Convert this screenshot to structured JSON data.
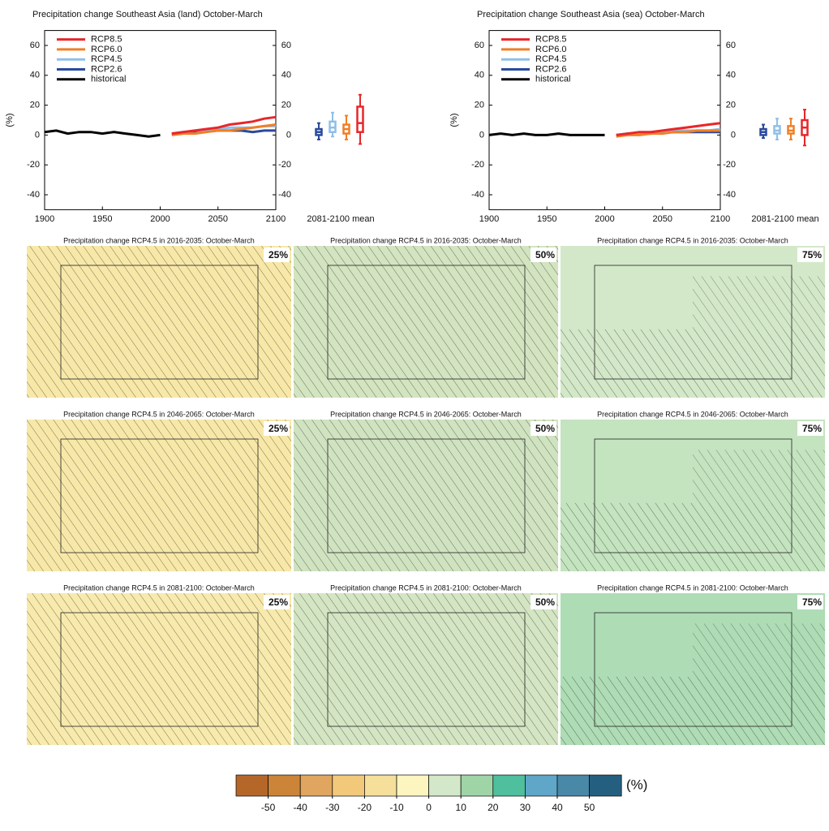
{
  "chart_data": [
    {
      "type": "line",
      "title": "Precipitation change Southeast Asia (land) October-March",
      "y_label": "(%)",
      "x": [
        1900,
        1910,
        1920,
        1930,
        1940,
        1950,
        1960,
        1970,
        1980,
        1990,
        2000,
        2010,
        2020,
        2030,
        2040,
        2050,
        2060,
        2070,
        2080,
        2090,
        2100
      ],
      "series": [
        {
          "name": "RCP8.5",
          "color": "#e8262a",
          "values": [
            null,
            null,
            null,
            null,
            null,
            null,
            null,
            null,
            null,
            null,
            null,
            1,
            2,
            3,
            4,
            5,
            7,
            8,
            9,
            11,
            12
          ]
        },
        {
          "name": "RCP6.0",
          "color": "#f07f27",
          "values": [
            null,
            null,
            null,
            null,
            null,
            null,
            null,
            null,
            null,
            null,
            null,
            0,
            1,
            1,
            2,
            3,
            3,
            4,
            5,
            6,
            7
          ]
        },
        {
          "name": "RCP4.5",
          "color": "#8fbfe8",
          "values": [
            null,
            null,
            null,
            null,
            null,
            null,
            null,
            null,
            null,
            null,
            null,
            1,
            2,
            3,
            3,
            4,
            5,
            5,
            5,
            6,
            6
          ]
        },
        {
          "name": "RCP2.6",
          "color": "#2a4a9c",
          "values": [
            null,
            null,
            null,
            null,
            null,
            null,
            null,
            null,
            null,
            null,
            null,
            1,
            2,
            2,
            3,
            3,
            3,
            3,
            2,
            3,
            3
          ]
        },
        {
          "name": "historical",
          "color": "#000000",
          "values": [
            2,
            3,
            1,
            2,
            2,
            1,
            2,
            1,
            0,
            -1,
            0,
            null,
            null,
            null,
            null,
            null,
            null,
            null,
            null,
            null,
            null
          ]
        }
      ],
      "xlim": [
        1900,
        2100
      ],
      "xticks": [
        1900,
        1950,
        2000,
        2050,
        2100
      ],
      "ylim": [
        -50,
        70
      ],
      "yticks": [
        -40,
        -20,
        0,
        20,
        40,
        60
      ],
      "y2lim": [
        -50,
        70
      ],
      "y2ticks": [
        -40,
        -20,
        0,
        20,
        40,
        60
      ],
      "legend": "upper left",
      "boxplot": {
        "label": "2081-2100 mean",
        "boxes": [
          {
            "color": "#2a4a9c",
            "min": -3,
            "q1": 0,
            "median": 2,
            "q3": 4,
            "max": 8
          },
          {
            "color": "#8fbfe8",
            "min": -1,
            "q1": 2,
            "median": 5,
            "q3": 9,
            "max": 15
          },
          {
            "color": "#f07f27",
            "min": -3,
            "q1": 1,
            "median": 4,
            "q3": 7,
            "max": 13
          },
          {
            "color": "#e8262a",
            "min": -6,
            "q1": 2,
            "median": 8,
            "q3": 19,
            "max": 27
          }
        ]
      }
    },
    {
      "type": "line",
      "title": "Precipitation change Southeast Asia (sea) October-March",
      "y_label": "(%)",
      "x": [
        1900,
        1910,
        1920,
        1930,
        1940,
        1950,
        1960,
        1970,
        1980,
        1990,
        2000,
        2010,
        2020,
        2030,
        2040,
        2050,
        2060,
        2070,
        2080,
        2090,
        2100
      ],
      "series": [
        {
          "name": "RCP8.5",
          "color": "#e8262a",
          "values": [
            null,
            null,
            null,
            null,
            null,
            null,
            null,
            null,
            null,
            null,
            null,
            0,
            1,
            2,
            2,
            3,
            4,
            5,
            6,
            7,
            8
          ]
        },
        {
          "name": "RCP6.0",
          "color": "#f07f27",
          "values": [
            null,
            null,
            null,
            null,
            null,
            null,
            null,
            null,
            null,
            null,
            null,
            -1,
            0,
            0,
            1,
            1,
            2,
            2,
            3,
            3,
            3
          ]
        },
        {
          "name": "RCP4.5",
          "color": "#8fbfe8",
          "values": [
            null,
            null,
            null,
            null,
            null,
            null,
            null,
            null,
            null,
            null,
            null,
            0,
            1,
            1,
            2,
            2,
            3,
            3,
            3,
            3,
            4
          ]
        },
        {
          "name": "RCP2.6",
          "color": "#2a4a9c",
          "values": [
            null,
            null,
            null,
            null,
            null,
            null,
            null,
            null,
            null,
            null,
            null,
            0,
            1,
            1,
            1,
            2,
            2,
            2,
            2,
            2,
            2
          ]
        },
        {
          "name": "historical",
          "color": "#000000",
          "values": [
            0,
            1,
            0,
            1,
            0,
            0,
            1,
            0,
            0,
            0,
            0,
            null,
            null,
            null,
            null,
            null,
            null,
            null,
            null,
            null,
            null
          ]
        }
      ],
      "xlim": [
        1900,
        2100
      ],
      "xticks": [
        1900,
        1950,
        2000,
        2050,
        2100
      ],
      "ylim": [
        -50,
        70
      ],
      "yticks": [
        -40,
        -20,
        0,
        20,
        40,
        60
      ],
      "y2lim": [
        -50,
        70
      ],
      "y2ticks": [
        -40,
        -20,
        0,
        20,
        40,
        60
      ],
      "legend": "upper left",
      "boxplot": {
        "label": "2081-2100 mean",
        "boxes": [
          {
            "color": "#2a4a9c",
            "min": -2,
            "q1": 0,
            "median": 2,
            "q3": 4,
            "max": 7
          },
          {
            "color": "#8fbfe8",
            "min": -3,
            "q1": 1,
            "median": 3,
            "q3": 6,
            "max": 11
          },
          {
            "color": "#f07f27",
            "min": -3,
            "q1": 1,
            "median": 3,
            "q3": 6,
            "max": 11
          },
          {
            "color": "#e8262a",
            "min": -7,
            "q1": 0,
            "median": 5,
            "q3": 10,
            "max": 17
          }
        ]
      }
    }
  ],
  "maps": [
    {
      "title": "Precipitation change RCP4.5 in 2016-2035: October-March",
      "percentile": "25%",
      "color": "#f8e8a8"
    },
    {
      "title": "Precipitation change RCP4.5 in 2016-2035: October-March",
      "percentile": "50%",
      "color": "#d3e4c0"
    },
    {
      "title": "Precipitation change RCP4.5 in 2016-2035: October-March",
      "percentile": "75%",
      "color": "#d3e8c8"
    },
    {
      "title": "Precipitation change RCP4.5 in 2046-2065: October-March",
      "percentile": "25%",
      "color": "#f8e8a8"
    },
    {
      "title": "Precipitation change RCP4.5 in 2046-2065: October-March",
      "percentile": "50%",
      "color": "#d0e3c0"
    },
    {
      "title": "Precipitation change RCP4.5 in 2046-2065: October-March",
      "percentile": "75%",
      "color": "#c4e3bf"
    },
    {
      "title": "Precipitation change RCP4.5 in 2081-2100: October-March",
      "percentile": "25%",
      "color": "#f8eaac"
    },
    {
      "title": "Precipitation change RCP4.5 in 2081-2100: October-March",
      "percentile": "50%",
      "color": "#d3e5c2"
    },
    {
      "title": "Precipitation change RCP4.5 in 2081-2100: October-March",
      "percentile": "75%",
      "color": "#aedcb5"
    }
  ],
  "colorbar": {
    "unit": "(%)",
    "colors": [
      "#b5672a",
      "#cc8438",
      "#e0a55e",
      "#f2c97a",
      "#f5df9a",
      "#fdf5c0",
      "#d3e8c8",
      "#9fd4a7",
      "#4fbf9d",
      "#5fa6c8",
      "#4a88a8",
      "#255f80"
    ],
    "ticks": [
      -50,
      -40,
      -30,
      -20,
      -10,
      0,
      10,
      20,
      30,
      40,
      50
    ]
  }
}
